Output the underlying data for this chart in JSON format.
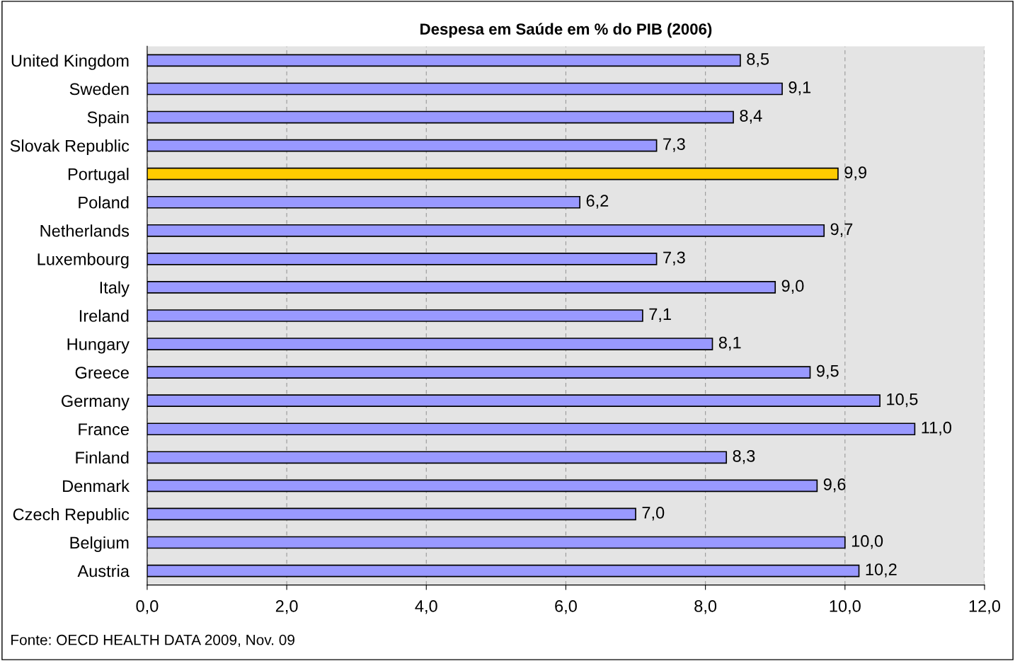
{
  "chart_data": {
    "type": "bar",
    "orientation": "horizontal",
    "title": "Despesa em Saúde em % do PIB (2006)",
    "categories": [
      "United Kingdom",
      "Sweden",
      "Spain",
      "Slovak Republic",
      "Portugal",
      "Poland",
      "Netherlands",
      "Luxembourg",
      "Italy",
      "Ireland",
      "Hungary",
      "Greece",
      "Germany",
      "France",
      "Finland",
      "Denmark",
      "Czech Republic",
      "Belgium",
      "Austria"
    ],
    "values": [
      8.5,
      9.1,
      8.4,
      7.3,
      9.9,
      6.2,
      9.7,
      7.3,
      9.0,
      7.1,
      8.1,
      9.5,
      10.5,
      11.0,
      8.3,
      9.6,
      7.0,
      10.0,
      10.2
    ],
    "value_labels": [
      "8,5",
      "9,1",
      "8,4",
      "7,3",
      "9,9",
      "6,2",
      "9,7",
      "7,3",
      "9,0",
      "7,1",
      "8,1",
      "9,5",
      "10,5",
      "11,0",
      "8,3",
      "9,6",
      "7,0",
      "10,0",
      "10,2"
    ],
    "colors": [
      "#9999ff",
      "#9999ff",
      "#9999ff",
      "#9999ff",
      "#ffcc00",
      "#9999ff",
      "#9999ff",
      "#9999ff",
      "#9999ff",
      "#9999ff",
      "#9999ff",
      "#9999ff",
      "#9999ff",
      "#9999ff",
      "#9999ff",
      "#9999ff",
      "#9999ff",
      "#9999ff",
      "#9999ff"
    ],
    "xlim": [
      0,
      12
    ],
    "xticks": [
      {
        "value": 0,
        "label": "0,0"
      },
      {
        "value": 2,
        "label": "2,0"
      },
      {
        "value": 4,
        "label": "4,0"
      },
      {
        "value": 6,
        "label": "6,0"
      },
      {
        "value": 8,
        "label": "8,0"
      },
      {
        "value": 10,
        "label": "10,0"
      },
      {
        "value": 12,
        "label": "12,0"
      }
    ],
    "grid": "x",
    "legend": false,
    "annotations": [
      "Fonte: OECD HEALTH DATA 2009, Nov. 09"
    ]
  }
}
